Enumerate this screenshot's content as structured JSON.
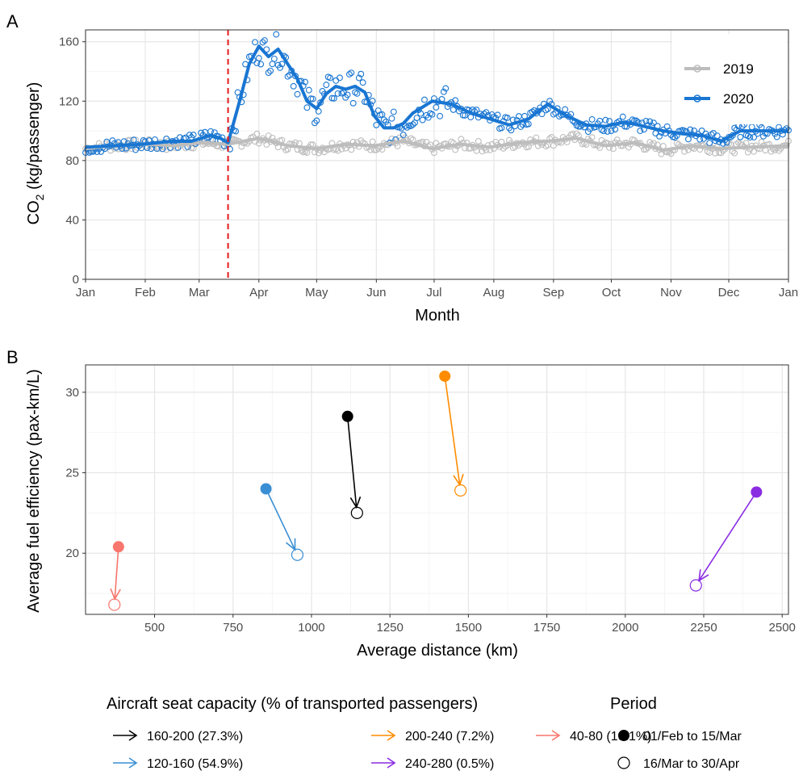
{
  "chart_data": [
    {
      "panel": "A",
      "type": "line",
      "ylabel_main": "CO",
      "ylabel_sub": "2",
      "ylabel_tail": " (kg/passenger)",
      "xlabel": "Month",
      "ylim": [
        0,
        168
      ],
      "yticks": [
        0,
        40,
        80,
        120,
        160
      ],
      "x_ticks": [
        "Jan",
        "Feb",
        "Mar",
        "Apr",
        "May",
        "Jun",
        "Jul",
        "Aug",
        "Sep",
        "Oct",
        "Nov",
        "Dec",
        "Jan"
      ],
      "grid": true,
      "event_line_day": 74,
      "event_line_color": "#e41a1c",
      "legend_position": "top-right",
      "series": [
        {
          "name": "2019",
          "color": "#bdbdbd",
          "smooth_day": [
            0,
            15,
            30,
            45,
            60,
            74,
            90,
            105,
            120,
            135,
            150,
            165,
            180,
            195,
            210,
            225,
            240,
            255,
            270,
            285,
            300,
            315,
            330,
            345,
            365
          ],
          "smooth_value": [
            88,
            90,
            91,
            90,
            92,
            91,
            95,
            90,
            88,
            91,
            90,
            93,
            88,
            91,
            89,
            92,
            93,
            95,
            90,
            92,
            87,
            90,
            88,
            89,
            90
          ]
        },
        {
          "name": "2020",
          "color": "#1976d2",
          "smooth_day": [
            0,
            15,
            30,
            45,
            55,
            65,
            70,
            74,
            80,
            85,
            90,
            95,
            100,
            105,
            110,
            115,
            120,
            125,
            130,
            135,
            140,
            145,
            150,
            155,
            160,
            165,
            170,
            180,
            190,
            200,
            210,
            220,
            230,
            240,
            250,
            260,
            270,
            280,
            290,
            300,
            310,
            320,
            330,
            340,
            350,
            365
          ],
          "smooth_value": [
            89,
            90,
            91,
            93,
            93,
            97,
            95,
            92,
            120,
            145,
            157,
            150,
            155,
            145,
            135,
            120,
            115,
            125,
            130,
            128,
            130,
            126,
            110,
            102,
            102,
            105,
            112,
            120,
            118,
            112,
            108,
            104,
            108,
            118,
            110,
            104,
            103,
            106,
            103,
            100,
            98,
            97,
            93,
            100,
            100,
            100
          ]
        }
      ]
    },
    {
      "panel": "B",
      "type": "scatter",
      "xlabel": "Average distance (km)",
      "ylabel": "Average fuel efficiency (pax-km/L)",
      "xlim": [
        280,
        2520
      ],
      "ylim": [
        16.2,
        31.7
      ],
      "xticks": [
        500,
        750,
        1000,
        1250,
        1500,
        1750,
        2000,
        2250,
        2500
      ],
      "yticks": [
        20,
        25,
        30
      ],
      "grid": true,
      "legend_color_title": "Aircraft seat capacity (% of transported passengers)",
      "legend_shape_title": "Period",
      "period_labels": [
        "01/Feb to 15/Mar",
        "16/Mar to 30/Apr"
      ],
      "groups": [
        {
          "label": "160-200 (27.3%)",
          "color": "#000000",
          "from": [
            1115,
            28.5
          ],
          "to": [
            1145,
            22.5
          ]
        },
        {
          "label": "200-240 (7.2%)",
          "color": "#ff8c00",
          "from": [
            1425,
            31.0
          ],
          "to": [
            1475,
            23.9
          ]
        },
        {
          "label": "40-80 (10.1%)",
          "color": "#f8766d",
          "from": [
            385,
            20.4
          ],
          "to": [
            372,
            16.8
          ]
        },
        {
          "label": "120-160 (54.9%)",
          "color": "#3a8fd4",
          "from": [
            855,
            24.0
          ],
          "to": [
            955,
            19.9
          ]
        },
        {
          "label": "240-280 (0.5%)",
          "color": "#8a2be2",
          "from": [
            2418,
            23.8
          ],
          "to": [
            2225,
            18.0
          ]
        }
      ]
    }
  ],
  "panel_labels": [
    "A",
    "B"
  ]
}
